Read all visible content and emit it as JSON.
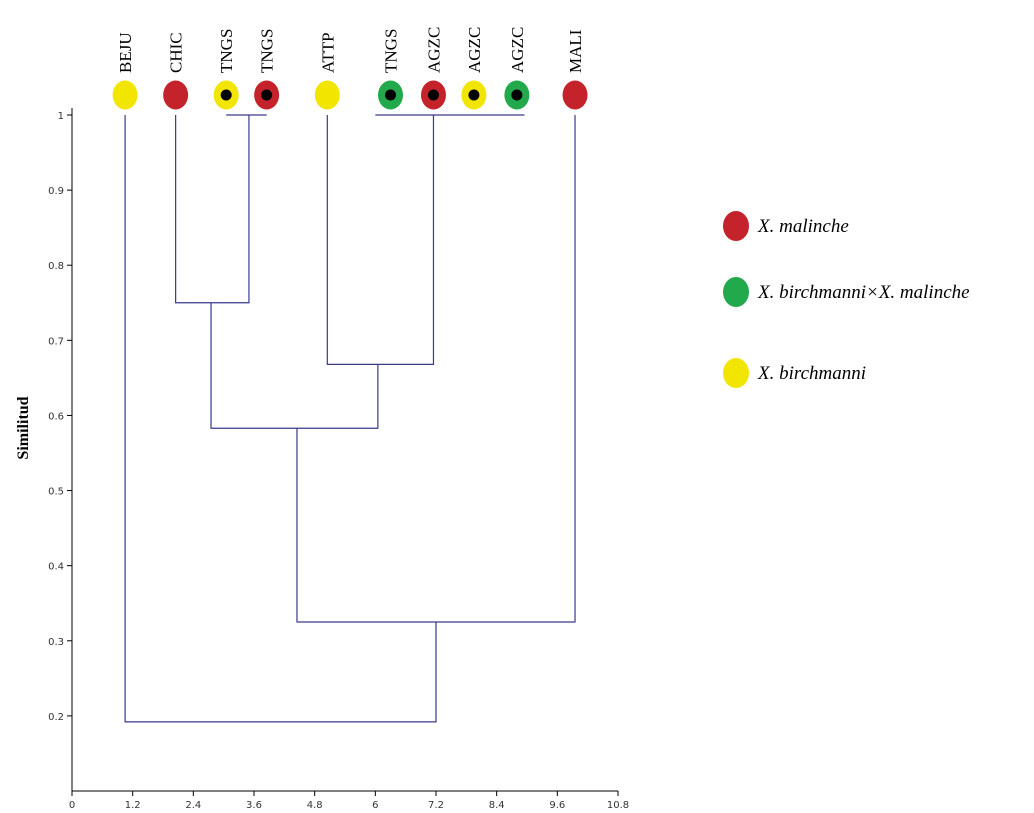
{
  "chart_data": {
    "type": "dendrogram",
    "ylabel": "Similitud",
    "xlabel": "",
    "ylim": [
      0.1,
      1.0
    ],
    "xlim": [
      0,
      10.8
    ],
    "x_ticks": [
      "0",
      "1.2",
      "2.4",
      "3.6",
      "4.8",
      "6",
      "7.2",
      "8.4",
      "9.6",
      "10.8"
    ],
    "y_ticks": [
      "0.2",
      "0.3",
      "0.4",
      "0.5",
      "0.6",
      "0.7",
      "0.8",
      "0.9",
      "1"
    ],
    "leaves": [
      {
        "label": "BEJU",
        "x": 1.05,
        "group": "birchmanni",
        "marked": false
      },
      {
        "label": "CHIC",
        "x": 2.05,
        "group": "malinche",
        "marked": false
      },
      {
        "label": "TNGS",
        "x": 3.05,
        "group": "birchmanni",
        "marked": true
      },
      {
        "label": "TNGS",
        "x": 3.85,
        "group": "malinche",
        "marked": true
      },
      {
        "label": "ATTP",
        "x": 5.05,
        "group": "birchmanni",
        "marked": false
      },
      {
        "label": "TNGS",
        "x": 6.3,
        "group": "hybrid",
        "marked": true
      },
      {
        "label": "AGZC",
        "x": 7.15,
        "group": "malinche",
        "marked": true
      },
      {
        "label": "AGZC",
        "x": 7.95,
        "group": "birchmanni",
        "marked": true
      },
      {
        "label": "AGZC",
        "x": 8.8,
        "group": "hybrid",
        "marked": true
      },
      {
        "label": "MALI",
        "x": 9.95,
        "group": "malinche",
        "marked": false
      }
    ],
    "merges": [
      {
        "left_x": 3.05,
        "right_x": 3.85,
        "left_y": 1.0,
        "right_y": 1.0,
        "height": 1.0
      },
      {
        "left_x": 6.0,
        "right_x": 8.95,
        "left_y": 1.0,
        "right_y": 1.0,
        "height": 1.0
      },
      {
        "left_x": 2.05,
        "right_x": 3.5,
        "left_y": 1.0,
        "right_y": 1.0,
        "height": 0.75
      },
      {
        "left_x": 5.05,
        "right_x": 7.15,
        "left_y": 1.0,
        "right_y": 1.0,
        "height": 0.668
      },
      {
        "left_x": 2.75,
        "right_x": 6.05,
        "left_y": 0.75,
        "right_y": 0.668,
        "height": 0.583
      },
      {
        "left_x": 4.45,
        "right_x": 9.95,
        "left_y": 0.583,
        "right_y": 1.0,
        "height": 0.325
      },
      {
        "left_x": 1.05,
        "right_x": 7.2,
        "left_y": 1.0,
        "right_y": 0.325,
        "height": 0.192
      }
    ],
    "groups": {
      "malinche": {
        "color": "#c4232b"
      },
      "hybrid": {
        "color": "#21a94b"
      },
      "birchmanni": {
        "color": "#f2e600"
      }
    },
    "line_color": "#3a3a8c",
    "legend": [
      {
        "group": "malinche",
        "text": "X.  malinche"
      },
      {
        "group": "hybrid",
        "text": "X.  birchmanni×X. malinche"
      },
      {
        "group": "birchmanni",
        "text": "X.  birchmanni"
      }
    ]
  }
}
